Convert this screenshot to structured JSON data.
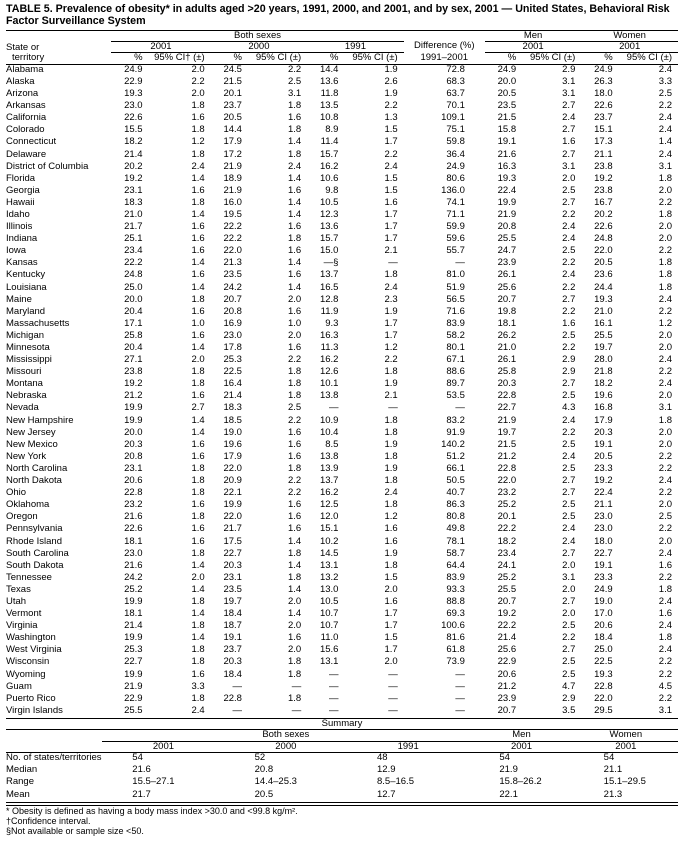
{
  "title": "TABLE 5. Prevalence of obesity* in adults aged >20 years, 1991, 2000, and 2001, and by sex, 2001 — United States, Behavioral Risk Factor Surveillance System",
  "group1": "Both sexes",
  "group2": "Men",
  "group3": "Women",
  "y2001": "2001",
  "y2000": "2000",
  "y1991": "1991",
  "diffHead": "Difference (%)",
  "diffSub": "1991–2001",
  "stateHead1": "State or",
  "stateHead2": "territory",
  "pct": "%",
  "ciHead": "95% CI† (±)",
  "ciHead2": "95% CI (±)",
  "rows": [
    {
      "s": "Alabama",
      "a": "24.9",
      "aci": "2.0",
      "b": "24.5",
      "bci": "2.2",
      "c": "14.4",
      "cci": "1.9",
      "d": "72.8",
      "m": "24.9",
      "mci": "2.9",
      "w": "24.9",
      "wci": "2.4"
    },
    {
      "s": "Alaska",
      "a": "22.9",
      "aci": "2.2",
      "b": "21.5",
      "bci": "2.5",
      "c": "13.6",
      "cci": "2.6",
      "d": "68.3",
      "m": "20.0",
      "mci": "3.1",
      "w": "26.3",
      "wci": "3.3"
    },
    {
      "s": "Arizona",
      "a": "19.3",
      "aci": "2.0",
      "b": "20.1",
      "bci": "3.1",
      "c": "11.8",
      "cci": "1.9",
      "d": "63.7",
      "m": "20.5",
      "mci": "3.1",
      "w": "18.0",
      "wci": "2.5"
    },
    {
      "s": "Arkansas",
      "a": "23.0",
      "aci": "1.8",
      "b": "23.7",
      "bci": "1.8",
      "c": "13.5",
      "cci": "2.2",
      "d": "70.1",
      "m": "23.5",
      "mci": "2.7",
      "w": "22.6",
      "wci": "2.2"
    },
    {
      "s": "California",
      "a": "22.6",
      "aci": "1.6",
      "b": "20.5",
      "bci": "1.6",
      "c": "10.8",
      "cci": "1.3",
      "d": "109.1",
      "m": "21.5",
      "mci": "2.4",
      "w": "23.7",
      "wci": "2.4"
    },
    {
      "s": "Colorado",
      "a": "15.5",
      "aci": "1.8",
      "b": "14.4",
      "bci": "1.8",
      "c": "8.9",
      "cci": "1.5",
      "d": "75.1",
      "m": "15.8",
      "mci": "2.7",
      "w": "15.1",
      "wci": "2.4"
    },
    {
      "s": "Connecticut",
      "a": "18.2",
      "aci": "1.2",
      "b": "17.9",
      "bci": "1.4",
      "c": "11.4",
      "cci": "1.7",
      "d": "59.8",
      "m": "19.1",
      "mci": "1.6",
      "w": "17.3",
      "wci": "1.4"
    },
    {
      "s": "Delaware",
      "a": "21.4",
      "aci": "1.8",
      "b": "17.2",
      "bci": "1.8",
      "c": "15.7",
      "cci": "2.2",
      "d": "36.4",
      "m": "21.6",
      "mci": "2.7",
      "w": "21.1",
      "wci": "2.4"
    },
    {
      "s": "District of Columbia",
      "a": "20.2",
      "aci": "2.4",
      "b": "21.9",
      "bci": "2.4",
      "c": "16.2",
      "cci": "2.4",
      "d": "24.9",
      "m": "16.3",
      "mci": "3.1",
      "w": "23.8",
      "wci": "3.1"
    },
    {
      "s": "Florida",
      "a": "19.2",
      "aci": "1.4",
      "b": "18.9",
      "bci": "1.4",
      "c": "10.6",
      "cci": "1.5",
      "d": "80.6",
      "m": "19.3",
      "mci": "2.0",
      "w": "19.2",
      "wci": "1.8"
    },
    {
      "s": "Georgia",
      "a": "23.1",
      "aci": "1.6",
      "b": "21.9",
      "bci": "1.6",
      "c": "9.8",
      "cci": "1.5",
      "d": "136.0",
      "m": "22.4",
      "mci": "2.5",
      "w": "23.8",
      "wci": "2.0"
    },
    {
      "s": "Hawaii",
      "a": "18.3",
      "aci": "1.8",
      "b": "16.0",
      "bci": "1.4",
      "c": "10.5",
      "cci": "1.6",
      "d": "74.1",
      "m": "19.9",
      "mci": "2.7",
      "w": "16.7",
      "wci": "2.2"
    },
    {
      "s": "Idaho",
      "a": "21.0",
      "aci": "1.4",
      "b": "19.5",
      "bci": "1.4",
      "c": "12.3",
      "cci": "1.7",
      "d": "71.1",
      "m": "21.9",
      "mci": "2.2",
      "w": "20.2",
      "wci": "1.8"
    },
    {
      "s": "Illinois",
      "a": "21.7",
      "aci": "1.6",
      "b": "22.2",
      "bci": "1.6",
      "c": "13.6",
      "cci": "1.7",
      "d": "59.9",
      "m": "20.8",
      "mci": "2.4",
      "w": "22.6",
      "wci": "2.0"
    },
    {
      "s": "Indiana",
      "a": "25.1",
      "aci": "1.6",
      "b": "22.2",
      "bci": "1.8",
      "c": "15.7",
      "cci": "1.7",
      "d": "59.6",
      "m": "25.5",
      "mci": "2.4",
      "w": "24.8",
      "wci": "2.0"
    },
    {
      "s": "Iowa",
      "a": "23.4",
      "aci": "1.6",
      "b": "22.0",
      "bci": "1.6",
      "c": "15.0",
      "cci": "2.1",
      "d": "55.7",
      "m": "24.7",
      "mci": "2.5",
      "w": "22.0",
      "wci": "2.2"
    },
    {
      "s": "Kansas",
      "a": "22.2",
      "aci": "1.4",
      "b": "21.3",
      "bci": "1.4",
      "c": "—§",
      "cci": "—",
      "d": "—",
      "m": "23.9",
      "mci": "2.2",
      "w": "20.5",
      "wci": "1.8"
    },
    {
      "s": "Kentucky",
      "a": "24.8",
      "aci": "1.6",
      "b": "23.5",
      "bci": "1.6",
      "c": "13.7",
      "cci": "1.8",
      "d": "81.0",
      "m": "26.1",
      "mci": "2.4",
      "w": "23.6",
      "wci": "1.8"
    },
    {
      "s": "Louisiana",
      "a": "25.0",
      "aci": "1.4",
      "b": "24.2",
      "bci": "1.4",
      "c": "16.5",
      "cci": "2.4",
      "d": "51.9",
      "m": "25.6",
      "mci": "2.2",
      "w": "24.4",
      "wci": "1.8"
    },
    {
      "s": "Maine",
      "a": "20.0",
      "aci": "1.8",
      "b": "20.7",
      "bci": "2.0",
      "c": "12.8",
      "cci": "2.3",
      "d": "56.5",
      "m": "20.7",
      "mci": "2.7",
      "w": "19.3",
      "wci": "2.4"
    },
    {
      "s": "Maryland",
      "a": "20.4",
      "aci": "1.6",
      "b": "20.8",
      "bci": "1.6",
      "c": "11.9",
      "cci": "1.9",
      "d": "71.6",
      "m": "19.8",
      "mci": "2.2",
      "w": "21.0",
      "wci": "2.2"
    },
    {
      "s": "Massachusetts",
      "a": "17.1",
      "aci": "1.0",
      "b": "16.9",
      "bci": "1.0",
      "c": "9.3",
      "cci": "1.7",
      "d": "83.9",
      "m": "18.1",
      "mci": "1.6",
      "w": "16.1",
      "wci": "1.2"
    },
    {
      "s": "Michigan",
      "a": "25.8",
      "aci": "1.6",
      "b": "23.0",
      "bci": "2.0",
      "c": "16.3",
      "cci": "1.7",
      "d": "58.2",
      "m": "26.2",
      "mci": "2.5",
      "w": "25.5",
      "wci": "2.0"
    },
    {
      "s": "Minnesota",
      "a": "20.4",
      "aci": "1.4",
      "b": "17.8",
      "bci": "1.6",
      "c": "11.3",
      "cci": "1.2",
      "d": "80.1",
      "m": "21.0",
      "mci": "2.2",
      "w": "19.7",
      "wci": "2.0"
    },
    {
      "s": "Mississippi",
      "a": "27.1",
      "aci": "2.0",
      "b": "25.3",
      "bci": "2.2",
      "c": "16.2",
      "cci": "2.2",
      "d": "67.1",
      "m": "26.1",
      "mci": "2.9",
      "w": "28.0",
      "wci": "2.4"
    },
    {
      "s": "Missouri",
      "a": "23.8",
      "aci": "1.8",
      "b": "22.5",
      "bci": "1.8",
      "c": "12.6",
      "cci": "1.8",
      "d": "88.6",
      "m": "25.8",
      "mci": "2.9",
      "w": "21.8",
      "wci": "2.2"
    },
    {
      "s": "Montana",
      "a": "19.2",
      "aci": "1.8",
      "b": "16.4",
      "bci": "1.8",
      "c": "10.1",
      "cci": "1.9",
      "d": "89.7",
      "m": "20.3",
      "mci": "2.7",
      "w": "18.2",
      "wci": "2.4"
    },
    {
      "s": "Nebraska",
      "a": "21.2",
      "aci": "1.6",
      "b": "21.4",
      "bci": "1.8",
      "c": "13.8",
      "cci": "2.1",
      "d": "53.5",
      "m": "22.8",
      "mci": "2.5",
      "w": "19.6",
      "wci": "2.0"
    },
    {
      "s": "Nevada",
      "a": "19.9",
      "aci": "2.7",
      "b": "18.3",
      "bci": "2.5",
      "c": "—",
      "cci": "—",
      "d": "—",
      "m": "22.7",
      "mci": "4.3",
      "w": "16.8",
      "wci": "3.1"
    },
    {
      "s": "New Hampshire",
      "a": "19.9",
      "aci": "1.4",
      "b": "18.5",
      "bci": "2.2",
      "c": "10.9",
      "cci": "1.8",
      "d": "83.2",
      "m": "21.9",
      "mci": "2.4",
      "w": "17.9",
      "wci": "1.8"
    },
    {
      "s": "New Jersey",
      "a": "20.0",
      "aci": "1.4",
      "b": "19.0",
      "bci": "1.6",
      "c": "10.4",
      "cci": "1.8",
      "d": "91.9",
      "m": "19.7",
      "mci": "2.2",
      "w": "20.3",
      "wci": "2.0"
    },
    {
      "s": "New Mexico",
      "a": "20.3",
      "aci": "1.6",
      "b": "19.6",
      "bci": "1.6",
      "c": "8.5",
      "cci": "1.9",
      "d": "140.2",
      "m": "21.5",
      "mci": "2.5",
      "w": "19.1",
      "wci": "2.0"
    },
    {
      "s": "New York",
      "a": "20.8",
      "aci": "1.6",
      "b": "17.9",
      "bci": "1.6",
      "c": "13.8",
      "cci": "1.8",
      "d": "51.2",
      "m": "21.2",
      "mci": "2.4",
      "w": "20.5",
      "wci": "2.2"
    },
    {
      "s": "North Carolina",
      "a": "23.1",
      "aci": "1.8",
      "b": "22.0",
      "bci": "1.8",
      "c": "13.9",
      "cci": "1.9",
      "d": "66.1",
      "m": "22.8",
      "mci": "2.5",
      "w": "23.3",
      "wci": "2.2"
    },
    {
      "s": "North Dakota",
      "a": "20.6",
      "aci": "1.8",
      "b": "20.9",
      "bci": "2.2",
      "c": "13.7",
      "cci": "1.8",
      "d": "50.5",
      "m": "22.0",
      "mci": "2.7",
      "w": "19.2",
      "wci": "2.4"
    },
    {
      "s": "Ohio",
      "a": "22.8",
      "aci": "1.8",
      "b": "22.1",
      "bci": "2.2",
      "c": "16.2",
      "cci": "2.4",
      "d": "40.7",
      "m": "23.2",
      "mci": "2.7",
      "w": "22.4",
      "wci": "2.2"
    },
    {
      "s": "Oklahoma",
      "a": "23.2",
      "aci": "1.6",
      "b": "19.9",
      "bci": "1.6",
      "c": "12.5",
      "cci": "1.8",
      "d": "86.3",
      "m": "25.2",
      "mci": "2.5",
      "w": "21.1",
      "wci": "2.0"
    },
    {
      "s": "Oregon",
      "a": "21.6",
      "aci": "1.8",
      "b": "22.0",
      "bci": "1.6",
      "c": "12.0",
      "cci": "1.2",
      "d": "80.8",
      "m": "20.1",
      "mci": "2.5",
      "w": "23.0",
      "wci": "2.5"
    },
    {
      "s": "Pennsylvania",
      "a": "22.6",
      "aci": "1.6",
      "b": "21.7",
      "bci": "1.6",
      "c": "15.1",
      "cci": "1.6",
      "d": "49.8",
      "m": "22.2",
      "mci": "2.4",
      "w": "23.0",
      "wci": "2.2"
    },
    {
      "s": "Rhode Island",
      "a": "18.1",
      "aci": "1.6",
      "b": "17.5",
      "bci": "1.4",
      "c": "10.2",
      "cci": "1.6",
      "d": "78.1",
      "m": "18.2",
      "mci": "2.4",
      "w": "18.0",
      "wci": "2.0"
    },
    {
      "s": "South Carolina",
      "a": "23.0",
      "aci": "1.8",
      "b": "22.7",
      "bci": "1.8",
      "c": "14.5",
      "cci": "1.9",
      "d": "58.7",
      "m": "23.4",
      "mci": "2.7",
      "w": "22.7",
      "wci": "2.4"
    },
    {
      "s": "South Dakota",
      "a": "21.6",
      "aci": "1.4",
      "b": "20.3",
      "bci": "1.4",
      "c": "13.1",
      "cci": "1.8",
      "d": "64.4",
      "m": "24.1",
      "mci": "2.0",
      "w": "19.1",
      "wci": "1.6"
    },
    {
      "s": "Tennessee",
      "a": "24.2",
      "aci": "2.0",
      "b": "23.1",
      "bci": "1.8",
      "c": "13.2",
      "cci": "1.5",
      "d": "83.9",
      "m": "25.2",
      "mci": "3.1",
      "w": "23.3",
      "wci": "2.2"
    },
    {
      "s": "Texas",
      "a": "25.2",
      "aci": "1.4",
      "b": "23.5",
      "bci": "1.4",
      "c": "13.0",
      "cci": "2.0",
      "d": "93.3",
      "m": "25.5",
      "mci": "2.0",
      "w": "24.9",
      "wci": "1.8"
    },
    {
      "s": "Utah",
      "a": "19.9",
      "aci": "1.8",
      "b": "19.7",
      "bci": "2.0",
      "c": "10.5",
      "cci": "1.6",
      "d": "88.8",
      "m": "20.7",
      "mci": "2.7",
      "w": "19.0",
      "wci": "2.4"
    },
    {
      "s": "Vermont",
      "a": "18.1",
      "aci": "1.4",
      "b": "18.4",
      "bci": "1.4",
      "c": "10.7",
      "cci": "1.7",
      "d": "69.3",
      "m": "19.2",
      "mci": "2.0",
      "w": "17.0",
      "wci": "1.6"
    },
    {
      "s": "Virginia",
      "a": "21.4",
      "aci": "1.8",
      "b": "18.7",
      "bci": "2.0",
      "c": "10.7",
      "cci": "1.7",
      "d": "100.6",
      "m": "22.2",
      "mci": "2.5",
      "w": "20.6",
      "wci": "2.4"
    },
    {
      "s": "Washington",
      "a": "19.9",
      "aci": "1.4",
      "b": "19.1",
      "bci": "1.6",
      "c": "11.0",
      "cci": "1.5",
      "d": "81.6",
      "m": "21.4",
      "mci": "2.2",
      "w": "18.4",
      "wci": "1.8"
    },
    {
      "s": "West Virginia",
      "a": "25.3",
      "aci": "1.8",
      "b": "23.7",
      "bci": "2.0",
      "c": "15.6",
      "cci": "1.7",
      "d": "61.8",
      "m": "25.6",
      "mci": "2.7",
      "w": "25.0",
      "wci": "2.4"
    },
    {
      "s": "Wisconsin",
      "a": "22.7",
      "aci": "1.8",
      "b": "20.3",
      "bci": "1.8",
      "c": "13.1",
      "cci": "2.0",
      "d": "73.9",
      "m": "22.9",
      "mci": "2.5",
      "w": "22.5",
      "wci": "2.2"
    },
    {
      "s": "Wyoming",
      "a": "19.9",
      "aci": "1.6",
      "b": "18.4",
      "bci": "1.8",
      "c": "—",
      "cci": "—",
      "d": "—",
      "m": "20.6",
      "mci": "2.5",
      "w": "19.3",
      "wci": "2.2"
    },
    {
      "s": "Guam",
      "a": "21.9",
      "aci": "3.3",
      "b": "—",
      "bci": "—",
      "c": "—",
      "cci": "—",
      "d": "—",
      "m": "21.2",
      "mci": "4.7",
      "w": "22.8",
      "wci": "4.5"
    },
    {
      "s": "Puerto Rico",
      "a": "22.9",
      "aci": "1.8",
      "b": "22.8",
      "bci": "1.8",
      "c": "—",
      "cci": "—",
      "d": "—",
      "m": "23.9",
      "mci": "2.9",
      "w": "22.0",
      "wci": "2.2"
    },
    {
      "s": "Virgin Islands",
      "a": "25.5",
      "aci": "2.4",
      "b": "—",
      "bci": "—",
      "c": "—",
      "cci": "—",
      "d": "—",
      "m": "20.7",
      "mci": "3.5",
      "w": "29.5",
      "wci": "3.1"
    }
  ],
  "summaryTitle": "Summary",
  "summaryRows": [
    {
      "l": "No. of states/territories",
      "a": "54",
      "b": "52",
      "c": "48",
      "m": "54",
      "w": "54"
    },
    {
      "l": "Median",
      "a": "21.6",
      "b": "20.8",
      "c": "12.9",
      "m": "21.9",
      "w": "21.1"
    },
    {
      "l": "Range",
      "a": "15.5–27.1",
      "b": "14.4–25.3",
      "c": "8.5–16.5",
      "m": "15.8–26.2",
      "w": "15.1–29.5"
    },
    {
      "l": "Mean",
      "a": "21.7",
      "b": "20.5",
      "c": "12.7",
      "m": "22.1",
      "w": "21.3"
    }
  ],
  "foot1": "* Obesity is defined as having a body mass index >30.0 and <99.8 kg/m².",
  "foot2": "†Confidence interval.",
  "foot3": "§Not available or sample size <50."
}
